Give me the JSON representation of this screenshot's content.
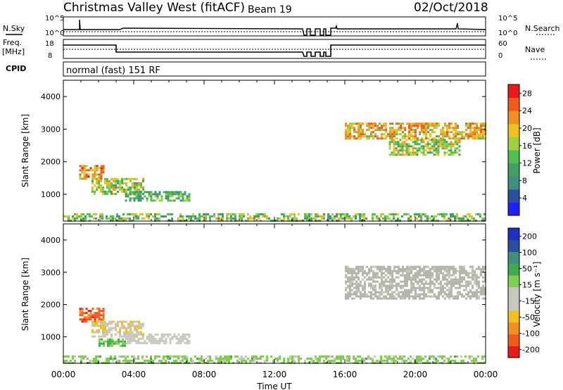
{
  "header": {
    "title": "Christmas Valley West (fitACF)",
    "beam": "Beam 19",
    "date": "02/Oct/2018"
  },
  "status_panels": {
    "nsky_label": "N.Sky",
    "nsky_ticks": [
      "10^5",
      "10^0"
    ],
    "nsearch_label": "N.Search",
    "nsearch_ticks": [
      "10^5",
      "10^0"
    ],
    "freq_label": "Freq.",
    "freq_unit": "[MHz]",
    "freq_ticks": [
      "18",
      "8"
    ],
    "nave_label": "Nave",
    "nave_ticks": [
      "60",
      "0"
    ],
    "cpid_label": "CPID",
    "cpid_text": "normal (fast) 151 RF"
  },
  "colors": {
    "power_scale": [
      "#1f1fff",
      "#2a4fa0",
      "#3f8f7f",
      "#3fa060",
      "#4fc04f",
      "#a0d040",
      "#f0c020",
      "#f09020",
      "#f05a1a",
      "#e81a1a"
    ],
    "velocity_scale": [
      "#e81a1a",
      "#f05a1a",
      "#f09020",
      "#f0c020",
      "#c8c8c0",
      "#c8c8c0",
      "#7fd04f",
      "#3faa4f",
      "#3f8f7f",
      "#2a4fa0",
      "#1f2fc0"
    ],
    "ground_scatter": "#b4b4aa"
  },
  "chart_data": [
    {
      "type": "heatmap",
      "panel": "power",
      "xlabel": "Time UT",
      "ylabel": "Slant Range [km]",
      "x_ticks": [
        "00:00",
        "04:00",
        "08:00",
        "12:00",
        "16:00",
        "20:00",
        "00:00"
      ],
      "xlim_hours": [
        0,
        24
      ],
      "y_ticks": [
        "1000",
        "2000",
        "3000",
        "4000"
      ],
      "ylim_km": [
        180,
        4500
      ],
      "colorbar": {
        "label": "Power [dB]",
        "ticks": [
          "4",
          "8",
          "12",
          "16",
          "20",
          "24",
          "28"
        ],
        "range": [
          0,
          30
        ]
      },
      "echo_regions": [
        {
          "hour_start": 0.0,
          "hour_end": 24.0,
          "range_km": [
            200,
            420
          ],
          "value": 14
        },
        {
          "hour_start": 0.9,
          "hour_end": 2.3,
          "range_km": [
            1500,
            1900
          ],
          "value": 22
        },
        {
          "hour_start": 1.6,
          "hour_end": 4.5,
          "range_km": [
            1000,
            1500
          ],
          "value": 16
        },
        {
          "hour_start": 3.5,
          "hour_end": 7.2,
          "range_km": [
            800,
            1100
          ],
          "value": 12
        },
        {
          "hour_start": 16.0,
          "hour_end": 24.0,
          "range_km": [
            2700,
            3200
          ],
          "value": 20
        },
        {
          "hour_start": 18.5,
          "hour_end": 22.5,
          "range_km": [
            2200,
            2700
          ],
          "value": 16
        }
      ]
    },
    {
      "type": "heatmap",
      "panel": "velocity",
      "xlabel": "Time UT",
      "ylabel": "Slant Range [km]",
      "x_ticks": [
        "00:00",
        "04:00",
        "08:00",
        "12:00",
        "16:00",
        "20:00",
        "00:00"
      ],
      "xlim_hours": [
        0,
        24
      ],
      "y_ticks": [
        "1000",
        "2000",
        "3000",
        "4000"
      ],
      "ylim_km": [
        180,
        4500
      ],
      "colorbar": {
        "label": "Velocity [m s⁻¹]",
        "ticks": [
          "200",
          "100",
          "50",
          "15",
          "-15",
          "-50",
          "-100",
          "-200"
        ],
        "range": [
          -250,
          250
        ]
      },
      "echo_regions": [
        {
          "hour_start": 0.0,
          "hour_end": 24.0,
          "range_km": [
            200,
            420
          ],
          "value": 40
        },
        {
          "hour_start": 0.9,
          "hour_end": 2.3,
          "range_km": [
            1500,
            1900
          ],
          "value": -180
        },
        {
          "hour_start": 1.6,
          "hour_end": 4.5,
          "range_km": [
            1000,
            1500
          ],
          "value": -60
        },
        {
          "hour_start": 3.5,
          "hour_end": 7.2,
          "range_km": [
            800,
            1100
          ],
          "value": -30
        },
        {
          "hour_start": 2.0,
          "hour_end": 3.5,
          "range_km": [
            700,
            950
          ],
          "value": 60
        },
        {
          "hour_start": 16.0,
          "hour_end": 24.0,
          "range_km": [
            2200,
            3200
          ],
          "value": 0
        }
      ]
    }
  ]
}
